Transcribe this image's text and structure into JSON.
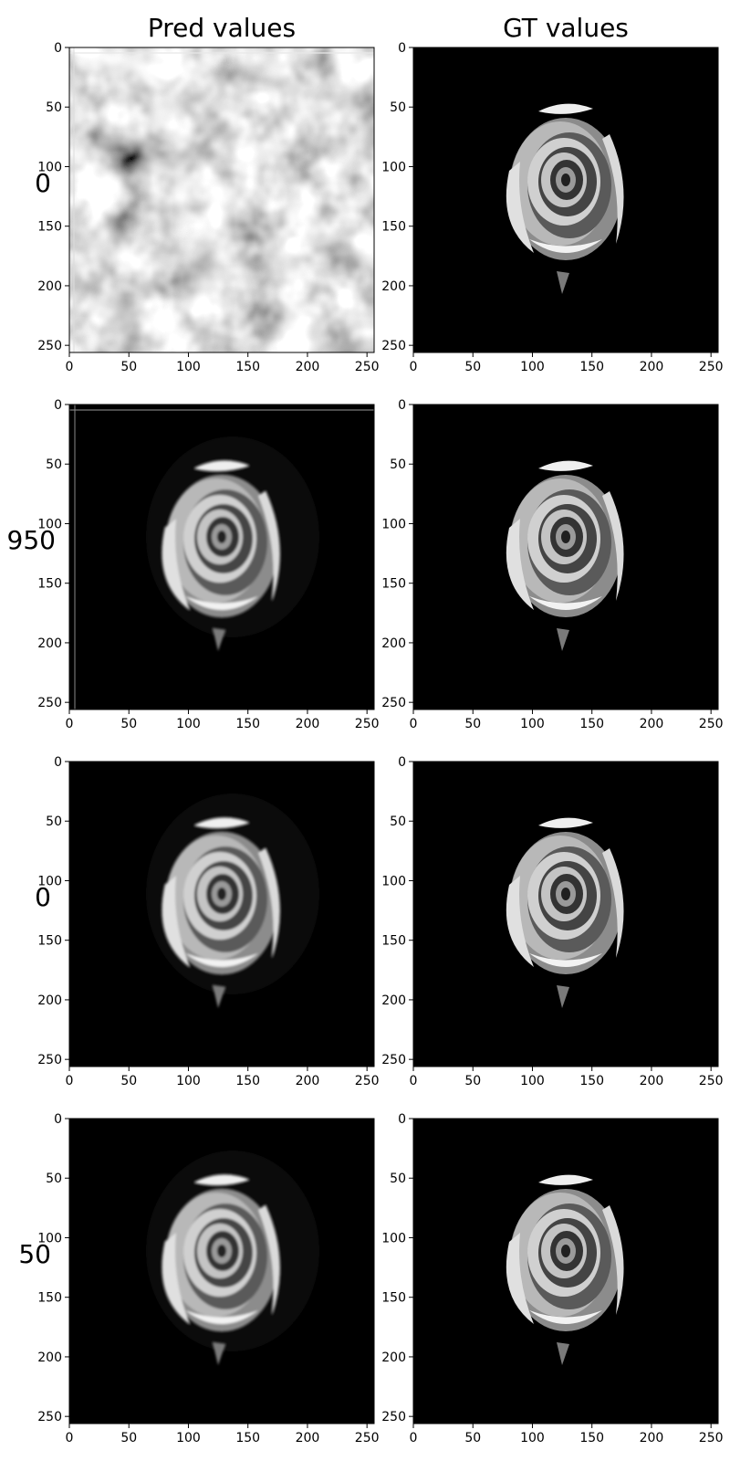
{
  "figure": {
    "column_titles": [
      "Pred values",
      "GT values"
    ],
    "row_labels": [
      "0",
      "950",
      "0",
      "50"
    ]
  },
  "chart_data": [
    {
      "type": "heatmap",
      "row_label": "0",
      "column": "Pred values",
      "image": "noise",
      "xlim": [
        0,
        256
      ],
      "ylim": [
        256,
        0
      ],
      "xticks": [
        0,
        50,
        100,
        150,
        200,
        250
      ],
      "yticks": [
        0,
        50,
        100,
        150,
        200,
        250
      ],
      "grid": false
    },
    {
      "type": "heatmap",
      "row_label": "0",
      "column": "GT values",
      "image": "rose",
      "xlim": [
        0,
        256
      ],
      "ylim": [
        256,
        0
      ],
      "xticks": [
        0,
        50,
        100,
        150,
        200,
        250
      ],
      "yticks": [
        0,
        50,
        100,
        150,
        200,
        250
      ],
      "grid": false
    },
    {
      "type": "heatmap",
      "row_label": "950",
      "column": "Pred values",
      "image": "rose-blurred-with-edge-lines",
      "xlim": [
        0,
        256
      ],
      "ylim": [
        256,
        0
      ],
      "xticks": [
        0,
        50,
        100,
        150,
        200,
        250
      ],
      "yticks": [
        0,
        50,
        100,
        150,
        200,
        250
      ],
      "grid": false
    },
    {
      "type": "heatmap",
      "row_label": "950",
      "column": "GT values",
      "image": "rose",
      "xlim": [
        0,
        256
      ],
      "ylim": [
        256,
        0
      ],
      "xticks": [
        0,
        50,
        100,
        150,
        200,
        250
      ],
      "yticks": [
        0,
        50,
        100,
        150,
        200,
        250
      ],
      "grid": false
    },
    {
      "type": "heatmap",
      "row_label": "0",
      "column": "Pred values",
      "image": "rose-blurred",
      "xlim": [
        0,
        256
      ],
      "ylim": [
        256,
        0
      ],
      "xticks": [
        0,
        50,
        100,
        150,
        200,
        250
      ],
      "yticks": [
        0,
        50,
        100,
        150,
        200,
        250
      ],
      "grid": false
    },
    {
      "type": "heatmap",
      "row_label": "0",
      "column": "GT values",
      "image": "rose",
      "xlim": [
        0,
        256
      ],
      "ylim": [
        256,
        0
      ],
      "xticks": [
        0,
        50,
        100,
        150,
        200,
        250
      ],
      "yticks": [
        0,
        50,
        100,
        150,
        200,
        250
      ],
      "grid": false
    },
    {
      "type": "heatmap",
      "row_label": "50",
      "column": "Pred values",
      "image": "rose-blurred",
      "xlim": [
        0,
        256
      ],
      "ylim": [
        256,
        0
      ],
      "xticks": [
        0,
        50,
        100,
        150,
        200,
        250
      ],
      "yticks": [
        0,
        50,
        100,
        150,
        200,
        250
      ],
      "grid": false
    },
    {
      "type": "heatmap",
      "row_label": "50",
      "column": "GT values",
      "image": "rose",
      "xlim": [
        0,
        256
      ],
      "ylim": [
        256,
        0
      ],
      "xticks": [
        0,
        50,
        100,
        150,
        200,
        250
      ],
      "yticks": [
        0,
        50,
        100,
        150,
        200,
        250
      ],
      "grid": false
    }
  ]
}
